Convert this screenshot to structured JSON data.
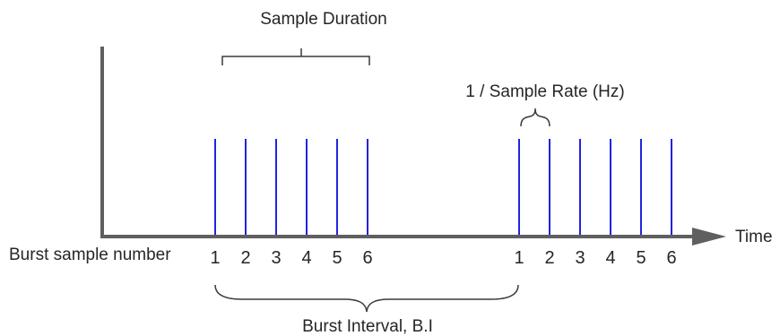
{
  "diagram": {
    "sample_duration_label": "Sample Duration",
    "sample_rate_label": "1 / Sample Rate (Hz)",
    "time_axis_label": "Time",
    "burst_sample_number_label": "Burst sample number",
    "burst_interval_label": "Burst Interval, B.I",
    "bursts": [
      {
        "samples": [
          "1",
          "2",
          "3",
          "4",
          "5",
          "6"
        ]
      },
      {
        "samples": [
          "1",
          "2",
          "3",
          "4",
          "5",
          "6"
        ]
      }
    ],
    "colors": {
      "axis": "#5f5f5f",
      "sample_line": "#2323e0",
      "bracket": "#3a3a3a",
      "text": "#262626"
    }
  }
}
